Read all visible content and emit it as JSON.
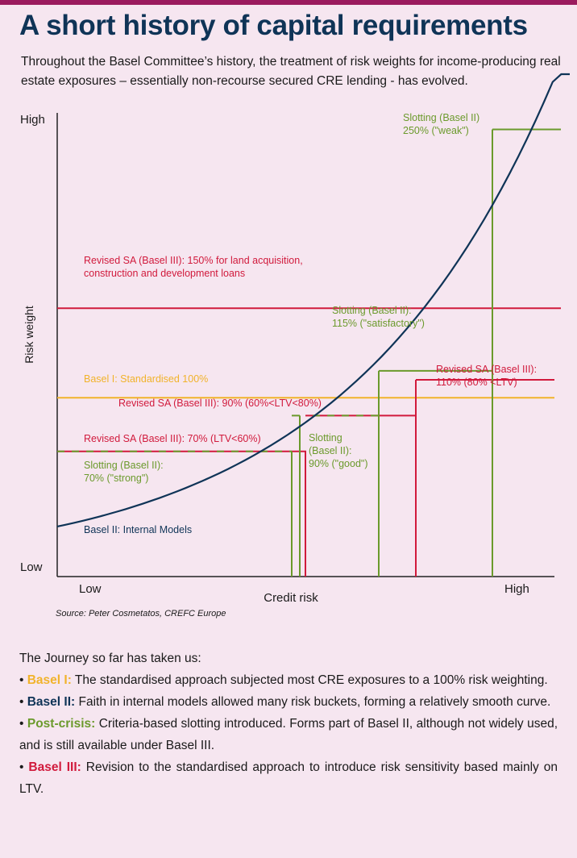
{
  "colors": {
    "navy": "#0f3457",
    "red": "#d11a3c",
    "green": "#6b9a2c",
    "orange": "#f1b32b",
    "brand_bar": "#9b1b5e",
    "background": "#f6e6f0"
  },
  "header": {
    "title": "A short history of capital requirements",
    "intro": "Throughout the Basel Committee’s history, the treatment of risk weights for income-producing real estate exposures – essentially non-recourse secured CRE lending - has evolved."
  },
  "chart_data": {
    "type": "line",
    "xlabel": "Credit risk",
    "ylabel": "Risk weight",
    "x_ticks": [
      "Low",
      "High"
    ],
    "y_ticks": [
      "High",
      "Low"
    ],
    "ylim": [
      0,
      270
    ],
    "series": [
      {
        "name": "Basel II: Internal Models",
        "kind": "curve",
        "color": "navy",
        "x": [
          0,
          0.1,
          0.2,
          0.3,
          0.4,
          0.5,
          0.6,
          0.7,
          0.8,
          0.9,
          1.0
        ],
        "y": [
          28,
          39,
          51,
          64,
          79,
          98,
          121,
          150,
          188,
          240,
          300
        ]
      },
      {
        "name": "Basel I: Standardised 100%",
        "kind": "hline",
        "color": "orange",
        "value": 100
      },
      {
        "name": "Revised SA (Basel III): 150% for land acquisition, construction and development loans",
        "kind": "hline",
        "color": "red",
        "value": 150
      },
      {
        "name": "Revised SA (Basel III)",
        "kind": "step",
        "color": "red",
        "steps": [
          {
            "label": "70% (LTV<60%)",
            "value": 70
          },
          {
            "label": "90% (60%<LTV<80%)",
            "value": 90
          },
          {
            "label": "110% (80%<LTV)",
            "value": 110
          }
        ]
      },
      {
        "name": "Slotting (Basel II)",
        "kind": "step",
        "color": "green",
        "steps": [
          {
            "label": "70% (\"strong\")",
            "value": 70
          },
          {
            "label": "90% (\"good\")",
            "value": 90
          },
          {
            "label": "115% (\"satisfactory\")",
            "value": 115
          },
          {
            "label": "250% (\"weak\")",
            "value": 250
          }
        ]
      }
    ],
    "annotations": {
      "slot_weak_1": "Slotting (Basel II)",
      "slot_weak_2": "250% (\"weak\")",
      "sa150_1": "Revised SA (Basel III): 150% for land acquisition,",
      "sa150_2": "construction and development loans",
      "slot_sat_1": "Slotting (Basel II):",
      "slot_sat_2": "115% (\"satisfactory\")",
      "sa110_1": "Revised SA (Basel III):",
      "sa110_2": "110% (80% <LTV)",
      "basel1": "Basel I: Standardised 100%",
      "sa90": "Revised SA (Basel III): 90% (60%<LTV<80%)",
      "sa70": "Revised SA (Basel III): 70% (LTV<60%)",
      "slot_good_1": "Slotting",
      "slot_good_2": "(Basel II):",
      "slot_good_3": "90% (\"good\")",
      "slot_strong_1": "Slotting (Basel II):",
      "slot_strong_2": "70% (\"strong\")",
      "internal": "Basel II: Internal Models"
    },
    "source": "Source: Peter Cosmetatos, CREFC Europe"
  },
  "journey": {
    "intro": "The Journey so far has taken us:",
    "items": [
      {
        "label": "Basel I:",
        "text": " The standardised approach subjected most CRE exposures to a 100% risk weighting.",
        "color": "orange"
      },
      {
        "label": "Basel II:",
        "text": " Faith in internal models allowed many risk buckets, forming a relatively smooth curve.",
        "color": "navy"
      },
      {
        "label": "Post-crisis:",
        "text": " Criteria-based slotting introduced. Forms part of Basel II, although not widely used, and is still available under Basel III.",
        "color": "green"
      },
      {
        "label": "Basel III:",
        "text": " Revision to the standardised approach to introduce risk sensitivity based mainly on LTV.",
        "color": "red"
      }
    ]
  }
}
